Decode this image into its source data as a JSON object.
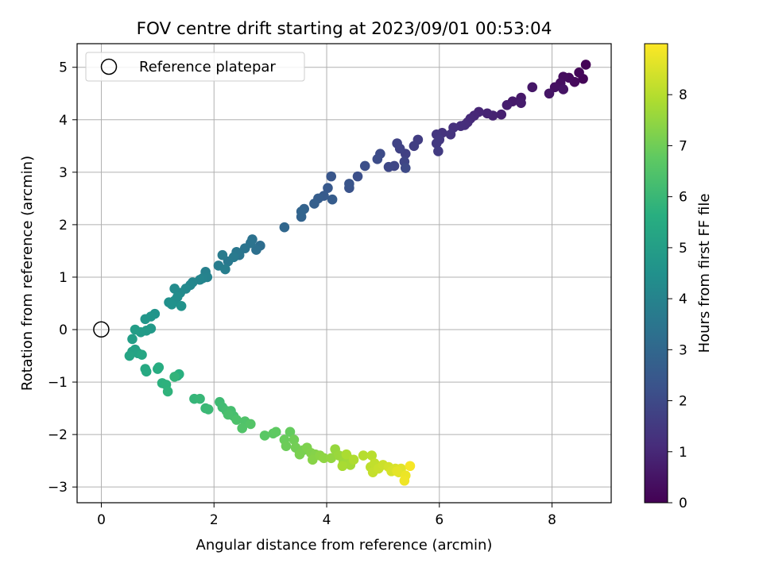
{
  "chart_data": {
    "type": "scatter",
    "title": "FOV centre drift starting at 2023/09/01 00:53:04",
    "xlabel": "Angular distance from reference (arcmin)",
    "ylabel": "Rotation from reference (arcmin)",
    "xlim": [
      -0.43,
      9.05
    ],
    "ylim": [
      -3.3,
      5.45
    ],
    "x_ticks": [
      0,
      2,
      4,
      6,
      8
    ],
    "y_ticks": [
      -3,
      -2,
      -1,
      0,
      1,
      2,
      3,
      4,
      5
    ],
    "grid": true,
    "legend_placement": "top-left",
    "legend": [
      {
        "label": "Reference platepar",
        "marker": "open-circle"
      }
    ],
    "reference_point": {
      "x": 0,
      "y": 0
    },
    "colorbar": {
      "label": "Hours from first FF file",
      "range": [
        0,
        9.0
      ],
      "ticks": [
        0,
        1,
        2,
        3,
        4,
        5,
        6,
        7,
        8
      ],
      "colormap": "viridis"
    },
    "series": [
      {
        "points": [
          {
            "x": 8.6,
            "y": 5.05,
            "t": 0.05
          },
          {
            "x": 8.55,
            "y": 4.78,
            "t": 0.1
          },
          {
            "x": 8.48,
            "y": 4.9,
            "t": 0.15
          },
          {
            "x": 8.4,
            "y": 4.72,
            "t": 0.2
          },
          {
            "x": 8.3,
            "y": 4.8,
            "t": 0.25
          },
          {
            "x": 8.2,
            "y": 4.82,
            "t": 0.3
          },
          {
            "x": 8.15,
            "y": 4.7,
            "t": 0.35
          },
          {
            "x": 8.05,
            "y": 4.62,
            "t": 0.4
          },
          {
            "x": 8.2,
            "y": 4.58,
            "t": 0.45
          },
          {
            "x": 7.95,
            "y": 4.5,
            "t": 0.5
          },
          {
            "x": 7.65,
            "y": 4.62,
            "t": 0.55
          },
          {
            "x": 7.45,
            "y": 4.42,
            "t": 0.6
          },
          {
            "x": 7.3,
            "y": 4.35,
            "t": 0.65
          },
          {
            "x": 7.45,
            "y": 4.32,
            "t": 0.7
          },
          {
            "x": 7.2,
            "y": 4.28,
            "t": 0.75
          },
          {
            "x": 7.1,
            "y": 4.1,
            "t": 0.8
          },
          {
            "x": 6.95,
            "y": 4.08,
            "t": 0.85
          },
          {
            "x": 6.85,
            "y": 4.12,
            "t": 0.9
          },
          {
            "x": 6.7,
            "y": 4.15,
            "t": 0.95
          },
          {
            "x": 6.62,
            "y": 4.08,
            "t": 1.0
          },
          {
            "x": 6.55,
            "y": 4.02,
            "t": 1.05
          },
          {
            "x": 6.5,
            "y": 3.95,
            "t": 1.1
          },
          {
            "x": 6.45,
            "y": 3.9,
            "t": 1.15
          },
          {
            "x": 6.38,
            "y": 3.88,
            "t": 1.2
          },
          {
            "x": 6.25,
            "y": 3.85,
            "t": 1.25
          },
          {
            "x": 6.05,
            "y": 3.75,
            "t": 1.3
          },
          {
            "x": 6.2,
            "y": 3.72,
            "t": 1.35
          },
          {
            "x": 5.95,
            "y": 3.72,
            "t": 1.4
          },
          {
            "x": 6.0,
            "y": 3.62,
            "t": 1.45
          },
          {
            "x": 5.95,
            "y": 3.55,
            "t": 1.5
          },
          {
            "x": 5.98,
            "y": 3.4,
            "t": 1.55
          },
          {
            "x": 5.62,
            "y": 3.62,
            "t": 1.6
          },
          {
            "x": 5.55,
            "y": 3.5,
            "t": 1.65
          },
          {
            "x": 5.4,
            "y": 3.35,
            "t": 1.7
          },
          {
            "x": 5.3,
            "y": 3.45,
            "t": 1.75
          },
          {
            "x": 5.25,
            "y": 3.55,
            "t": 1.8
          },
          {
            "x": 5.38,
            "y": 3.2,
            "t": 1.85
          },
          {
            "x": 5.2,
            "y": 3.12,
            "t": 1.9
          },
          {
            "x": 5.1,
            "y": 3.1,
            "t": 1.95
          },
          {
            "x": 5.4,
            "y": 3.08,
            "t": 2.0
          },
          {
            "x": 4.95,
            "y": 3.35,
            "t": 2.05
          },
          {
            "x": 4.9,
            "y": 3.25,
            "t": 2.1
          },
          {
            "x": 4.68,
            "y": 3.12,
            "t": 2.15
          },
          {
            "x": 4.55,
            "y": 2.92,
            "t": 2.2
          },
          {
            "x": 4.4,
            "y": 2.7,
            "t": 2.3
          },
          {
            "x": 4.4,
            "y": 2.78,
            "t": 2.35
          },
          {
            "x": 4.08,
            "y": 2.92,
            "t": 2.4
          },
          {
            "x": 4.02,
            "y": 2.7,
            "t": 2.5
          },
          {
            "x": 3.95,
            "y": 2.55,
            "t": 2.55
          },
          {
            "x": 4.1,
            "y": 2.48,
            "t": 2.6
          },
          {
            "x": 3.85,
            "y": 2.5,
            "t": 2.65
          },
          {
            "x": 3.78,
            "y": 2.4,
            "t": 2.7
          },
          {
            "x": 3.6,
            "y": 2.3,
            "t": 2.8
          },
          {
            "x": 3.55,
            "y": 2.15,
            "t": 2.85
          },
          {
            "x": 3.55,
            "y": 2.25,
            "t": 2.9
          },
          {
            "x": 3.25,
            "y": 1.95,
            "t": 3.0
          },
          {
            "x": 2.82,
            "y": 1.6,
            "t": 3.2
          },
          {
            "x": 2.75,
            "y": 1.52,
            "t": 3.3
          },
          {
            "x": 2.68,
            "y": 1.72,
            "t": 3.35
          },
          {
            "x": 2.65,
            "y": 1.65,
            "t": 3.4
          },
          {
            "x": 2.55,
            "y": 1.55,
            "t": 3.45
          },
          {
            "x": 2.45,
            "y": 1.42,
            "t": 3.5
          },
          {
            "x": 2.4,
            "y": 1.48,
            "t": 3.55
          },
          {
            "x": 2.25,
            "y": 1.3,
            "t": 3.6
          },
          {
            "x": 2.35,
            "y": 1.38,
            "t": 3.65
          },
          {
            "x": 2.15,
            "y": 1.42,
            "t": 3.7
          },
          {
            "x": 2.08,
            "y": 1.22,
            "t": 3.75
          },
          {
            "x": 2.2,
            "y": 1.15,
            "t": 3.8
          },
          {
            "x": 1.85,
            "y": 1.1,
            "t": 3.9
          },
          {
            "x": 1.88,
            "y": 1.0,
            "t": 3.95
          },
          {
            "x": 1.8,
            "y": 0.98,
            "t": 4.0
          },
          {
            "x": 1.75,
            "y": 0.95,
            "t": 4.05
          },
          {
            "x": 1.62,
            "y": 0.9,
            "t": 4.1
          },
          {
            "x": 1.58,
            "y": 0.85,
            "t": 4.15
          },
          {
            "x": 1.5,
            "y": 0.78,
            "t": 4.2
          },
          {
            "x": 1.4,
            "y": 0.7,
            "t": 4.25
          },
          {
            "x": 1.3,
            "y": 0.78,
            "t": 4.3
          },
          {
            "x": 1.35,
            "y": 0.62,
            "t": 4.35
          },
          {
            "x": 1.3,
            "y": 0.55,
            "t": 4.4
          },
          {
            "x": 1.2,
            "y": 0.52,
            "t": 4.45
          },
          {
            "x": 1.25,
            "y": 0.48,
            "t": 4.5
          },
          {
            "x": 1.42,
            "y": 0.45,
            "t": 4.55
          },
          {
            "x": 0.95,
            "y": 0.3,
            "t": 4.6
          },
          {
            "x": 0.88,
            "y": 0.25,
            "t": 4.65
          },
          {
            "x": 0.78,
            "y": 0.2,
            "t": 4.7
          },
          {
            "x": 0.88,
            "y": 0.02,
            "t": 4.8
          },
          {
            "x": 0.8,
            "y": -0.02,
            "t": 4.85
          },
          {
            "x": 0.7,
            "y": -0.05,
            "t": 4.9
          },
          {
            "x": 0.6,
            "y": 0.0,
            "t": 4.95
          },
          {
            "x": 0.55,
            "y": -0.18,
            "t": 5.0
          },
          {
            "x": 0.6,
            "y": -0.38,
            "t": 5.1
          },
          {
            "x": 0.55,
            "y": -0.42,
            "t": 5.15
          },
          {
            "x": 0.65,
            "y": -0.45,
            "t": 5.2
          },
          {
            "x": 0.5,
            "y": -0.5,
            "t": 5.25
          },
          {
            "x": 0.72,
            "y": -0.48,
            "t": 5.3
          },
          {
            "x": 0.78,
            "y": -0.75,
            "t": 5.4
          },
          {
            "x": 0.8,
            "y": -0.8,
            "t": 5.45
          },
          {
            "x": 1.0,
            "y": -0.75,
            "t": 5.5
          },
          {
            "x": 1.02,
            "y": -0.72,
            "t": 5.55
          },
          {
            "x": 1.35,
            "y": -0.88,
            "t": 5.6
          },
          {
            "x": 1.38,
            "y": -0.85,
            "t": 5.65
          },
          {
            "x": 1.08,
            "y": -1.02,
            "t": 5.7
          },
          {
            "x": 1.15,
            "y": -1.05,
            "t": 5.75
          },
          {
            "x": 1.18,
            "y": -1.18,
            "t": 5.8
          },
          {
            "x": 1.3,
            "y": -0.9,
            "t": 5.85
          },
          {
            "x": 1.65,
            "y": -1.32,
            "t": 5.9
          },
          {
            "x": 1.75,
            "y": -1.32,
            "t": 5.95
          },
          {
            "x": 1.85,
            "y": -1.5,
            "t": 6.0
          },
          {
            "x": 1.9,
            "y": -1.52,
            "t": 6.05
          },
          {
            "x": 2.1,
            "y": -1.38,
            "t": 6.1
          },
          {
            "x": 2.15,
            "y": -1.48,
            "t": 6.15
          },
          {
            "x": 2.22,
            "y": -1.55,
            "t": 6.2
          },
          {
            "x": 2.3,
            "y": -1.55,
            "t": 6.25
          },
          {
            "x": 2.35,
            "y": -1.65,
            "t": 6.3
          },
          {
            "x": 2.25,
            "y": -1.62,
            "t": 6.35
          },
          {
            "x": 2.4,
            "y": -1.72,
            "t": 6.4
          },
          {
            "x": 2.55,
            "y": -1.75,
            "t": 6.45
          },
          {
            "x": 2.5,
            "y": -1.88,
            "t": 6.5
          },
          {
            "x": 2.65,
            "y": -1.8,
            "t": 6.55
          },
          {
            "x": 2.9,
            "y": -2.02,
            "t": 6.65
          },
          {
            "x": 3.05,
            "y": -1.98,
            "t": 6.7
          },
          {
            "x": 3.1,
            "y": -1.95,
            "t": 6.75
          },
          {
            "x": 3.35,
            "y": -1.95,
            "t": 6.85
          },
          {
            "x": 3.25,
            "y": -2.1,
            "t": 6.9
          },
          {
            "x": 3.28,
            "y": -2.22,
            "t": 6.95
          },
          {
            "x": 3.42,
            "y": -2.1,
            "t": 7.0
          },
          {
            "x": 3.45,
            "y": -2.25,
            "t": 7.05
          },
          {
            "x": 3.58,
            "y": -2.3,
            "t": 7.1
          },
          {
            "x": 3.52,
            "y": -2.38,
            "t": 7.15
          },
          {
            "x": 3.65,
            "y": -2.25,
            "t": 7.2
          },
          {
            "x": 3.72,
            "y": -2.35,
            "t": 7.25
          },
          {
            "x": 3.8,
            "y": -2.38,
            "t": 7.3
          },
          {
            "x": 3.75,
            "y": -2.48,
            "t": 7.35
          },
          {
            "x": 3.88,
            "y": -2.4,
            "t": 7.4
          },
          {
            "x": 3.95,
            "y": -2.45,
            "t": 7.45
          },
          {
            "x": 4.08,
            "y": -2.45,
            "t": 7.5
          },
          {
            "x": 4.15,
            "y": -2.28,
            "t": 7.55
          },
          {
            "x": 4.22,
            "y": -2.4,
            "t": 7.6
          },
          {
            "x": 4.3,
            "y": -2.52,
            "t": 7.65
          },
          {
            "x": 4.38,
            "y": -2.45,
            "t": 7.7
          },
          {
            "x": 4.42,
            "y": -2.58,
            "t": 7.75
          },
          {
            "x": 4.28,
            "y": -2.6,
            "t": 7.8
          },
          {
            "x": 4.35,
            "y": -2.38,
            "t": 7.85
          },
          {
            "x": 4.48,
            "y": -2.48,
            "t": 7.9
          },
          {
            "x": 4.65,
            "y": -2.4,
            "t": 8.0
          },
          {
            "x": 4.8,
            "y": -2.4,
            "t": 8.05
          },
          {
            "x": 4.78,
            "y": -2.62,
            "t": 8.1
          },
          {
            "x": 4.85,
            "y": -2.55,
            "t": 8.15
          },
          {
            "x": 4.82,
            "y": -2.72,
            "t": 8.2
          },
          {
            "x": 4.92,
            "y": -2.65,
            "t": 8.25
          },
          {
            "x": 5.0,
            "y": -2.58,
            "t": 8.3
          },
          {
            "x": 5.1,
            "y": -2.62,
            "t": 8.4
          },
          {
            "x": 5.15,
            "y": -2.7,
            "t": 8.45
          },
          {
            "x": 5.22,
            "y": -2.65,
            "t": 8.5
          },
          {
            "x": 5.28,
            "y": -2.72,
            "t": 8.55
          },
          {
            "x": 5.32,
            "y": -2.65,
            "t": 8.6
          },
          {
            "x": 5.25,
            "y": -2.7,
            "t": 8.65
          },
          {
            "x": 5.4,
            "y": -2.78,
            "t": 8.75
          },
          {
            "x": 5.38,
            "y": -2.88,
            "t": 8.8
          },
          {
            "x": 5.48,
            "y": -2.6,
            "t": 8.9
          }
        ]
      }
    ]
  }
}
